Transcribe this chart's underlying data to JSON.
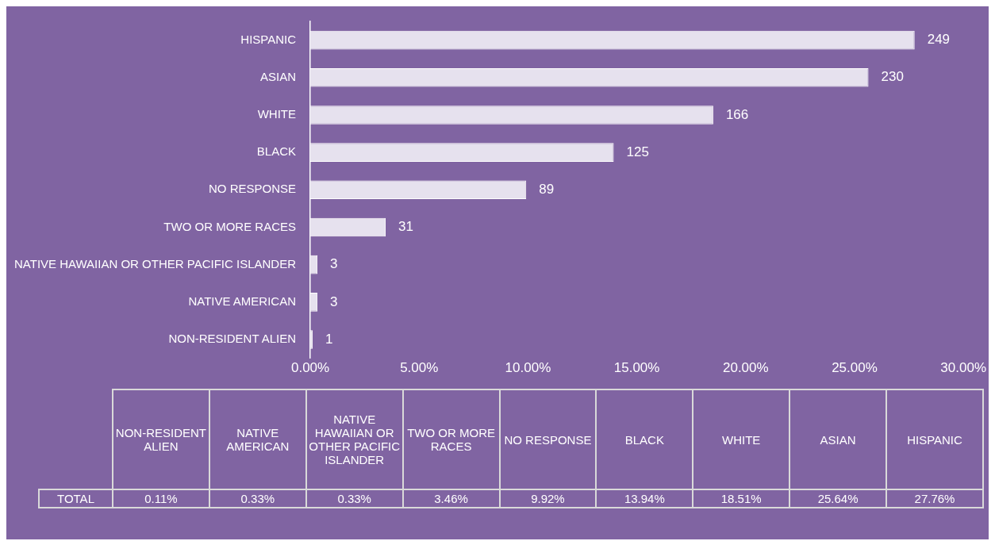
{
  "chart_data": {
    "type": "bar",
    "orientation": "horizontal",
    "categories": [
      "HISPANIC",
      "ASIAN",
      "WHITE",
      "BLACK",
      "NO RESPONSE",
      "TWO OR MORE RACES",
      "NATIVE HAWAIIAN OR OTHER PACIFIC ISLANDER",
      "NATIVE AMERICAN",
      "NON-RESIDENT ALIEN"
    ],
    "series": [
      {
        "name": "TOTAL",
        "color": "#e6e1ee",
        "values": [
          27.76,
          25.64,
          18.51,
          13.94,
          9.92,
          3.46,
          0.33,
          0.33,
          0.11
        ]
      }
    ],
    "xlim": [
      0,
      30
    ],
    "xticks": [
      {
        "value": 0,
        "label": "0.00%"
      },
      {
        "value": 5,
        "label": "5.00%"
      },
      {
        "value": 10,
        "label": "10.00%"
      },
      {
        "value": 15,
        "label": "15.00%"
      },
      {
        "value": 20,
        "label": "20.00%"
      },
      {
        "value": 25,
        "label": "25.00%"
      },
      {
        "value": 30,
        "label": "30.00%"
      }
    ],
    "annotations": [
      {
        "text": "249",
        "x": 27.76,
        "y": "HISPANIC"
      },
      {
        "text": "230",
        "x": 25.64,
        "y": "ASIAN"
      },
      {
        "text": "166",
        "x": 18.51,
        "y": "WHITE"
      },
      {
        "text": "125",
        "x": 13.94,
        "y": "BLACK"
      },
      {
        "text": "89",
        "x": 9.92,
        "y": "NO RESPONSE"
      },
      {
        "text": "31",
        "x": 3.46,
        "y": "TWO OR MORE RACES"
      },
      {
        "text": "3",
        "x": 0.33,
        "y": "NATIVE HAWAIIAN OR OTHER PACIFIC ISLANDER"
      },
      {
        "text": "3",
        "x": 0.33,
        "y": "NATIVE AMERICAN"
      },
      {
        "text": "1",
        "x": 0.11,
        "y": "NON-RESIDENT ALIEN"
      },
      "0.11%",
      "0.33%",
      "0.33%",
      "3.46%",
      "9.92%",
      "13.94%",
      "18.51%",
      "25.64%",
      "27.76%"
    ],
    "grid": false,
    "legend": false
  }
}
